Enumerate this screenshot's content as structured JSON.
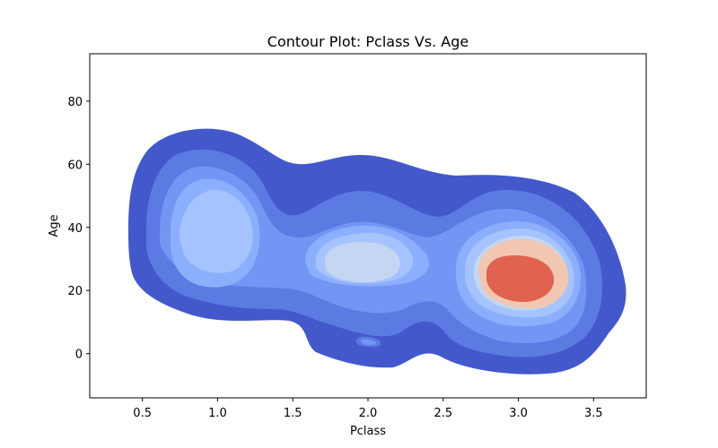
{
  "chart_data": {
    "type": "contour",
    "title": "Contour Plot: Pclass Vs. Age",
    "xlabel": "Pclass",
    "ylabel": "Age",
    "xlim": [
      0.15,
      3.85
    ],
    "ylim": [
      -14,
      95
    ],
    "x_ticks": [
      0.5,
      1.0,
      1.5,
      2.0,
      2.5,
      3.0,
      3.5
    ],
    "x_tick_labels": [
      "0.5",
      "1.0",
      "1.5",
      "2.0",
      "2.5",
      "3.0",
      "3.5"
    ],
    "y_ticks": [
      0,
      20,
      40,
      60,
      80
    ],
    "y_tick_labels": [
      "0",
      "20",
      "40",
      "60",
      "80"
    ],
    "colormap": "coolwarm",
    "level_colors": [
      "#4358cb",
      "#5b7be2",
      "#7396f5",
      "#8caffd",
      "#a5c3fe",
      "#c5d6f2",
      "#f2c7b2",
      "#df634e"
    ],
    "density_modes": [
      {
        "pclass": 1.0,
        "age": 37,
        "relative_density": 0.5
      },
      {
        "pclass": 2.05,
        "age": 29,
        "relative_density": 0.6
      },
      {
        "pclass": 3.02,
        "age": 24,
        "relative_density": 1.0
      }
    ],
    "grid": false
  }
}
